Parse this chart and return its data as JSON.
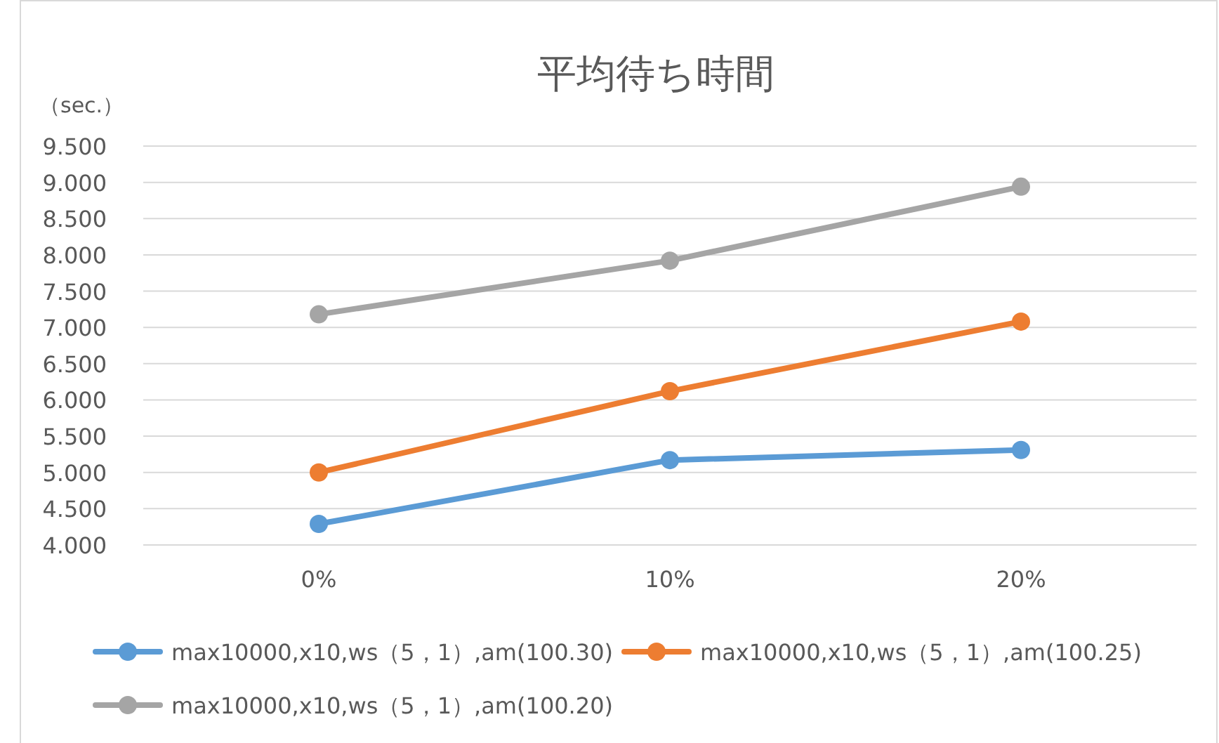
{
  "chart_data": {
    "type": "line",
    "title": "平均待ち時間",
    "ylabel": "（sec.）",
    "categories": [
      "0%",
      "10%",
      "20%"
    ],
    "ylim": [
      4,
      9.5
    ],
    "yticks": [
      {
        "value": 4,
        "label": "4.000"
      },
      {
        "value": 4.5,
        "label": "4.500"
      },
      {
        "value": 5,
        "label": "5.000"
      },
      {
        "value": 5.5,
        "label": "5.500"
      },
      {
        "value": 6,
        "label": "6.000"
      },
      {
        "value": 6.5,
        "label": "6.500"
      },
      {
        "value": 7,
        "label": "7.000"
      },
      {
        "value": 7.5,
        "label": "7.500"
      },
      {
        "value": 8,
        "label": "8.000"
      },
      {
        "value": 8.5,
        "label": "8.500"
      },
      {
        "value": 9,
        "label": "9.000"
      },
      {
        "value": 9.5,
        "label": "9.500"
      }
    ],
    "grid": "y",
    "legend": "bottom",
    "marker": "circle",
    "line_style": "solid",
    "series": [
      {
        "name": "max10000,x10,ws（5，1）,am(100.30)",
        "color": "#5b9bd5",
        "values": [
          4.29,
          5.17,
          5.31
        ]
      },
      {
        "name": "max10000,x10,ws（5，1）,am(100.25)",
        "color": "#ed7d31",
        "values": [
          5.0,
          6.12,
          7.08
        ]
      },
      {
        "name": "max10000,x10,ws（5，1）,am(100.20)",
        "color": "#a5a5a5",
        "values": [
          7.18,
          7.92,
          8.94
        ]
      }
    ]
  }
}
